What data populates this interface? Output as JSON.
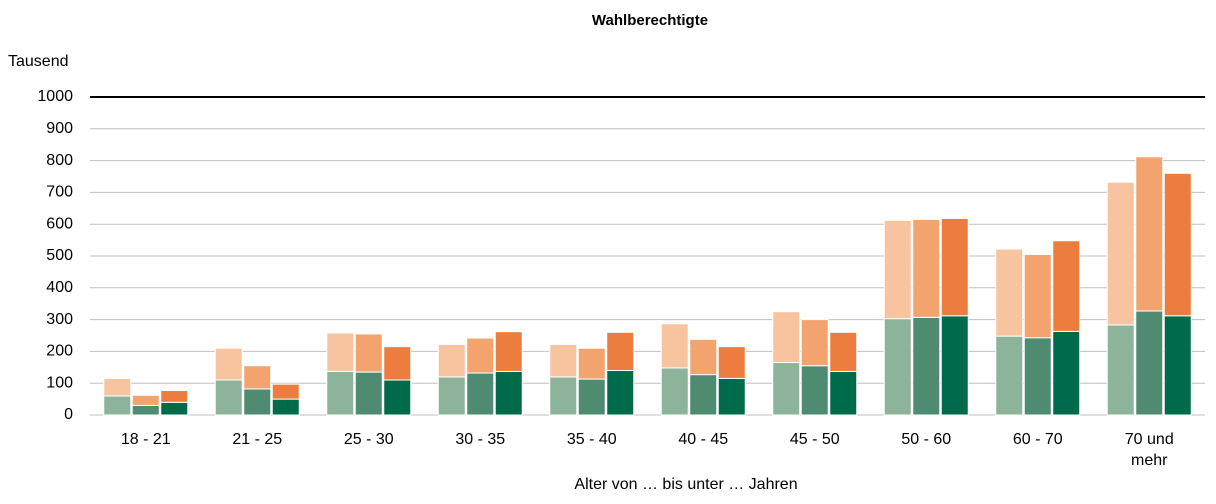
{
  "chart_data": {
    "type": "grouped_stacked_bar",
    "title": "Wahlberechtigte",
    "y_axis_label": "Tausend",
    "x_axis_label": "Alter von … bis unter … Jahren",
    "categories": [
      "18 - 21",
      "21 - 25",
      "25 - 30",
      "30 - 35",
      "35 - 40",
      "40 - 45",
      "45 - 50",
      "50 - 60",
      "60 - 70",
      "70 und\nmehr"
    ],
    "stacks": [
      {
        "series": [
          {
            "color": "#8db39b",
            "values": [
              60,
              110,
              137,
              120,
              120,
              148,
              165,
              303,
              248,
              283
            ]
          },
          {
            "color": "#f8c4a0",
            "values": [
              55,
              100,
              121,
              102,
              102,
              139,
              160,
              309,
              274,
              449
            ]
          }
        ]
      },
      {
        "series": [
          {
            "color": "#4f8b70",
            "values": [
              30,
              82,
              135,
              132,
              113,
              127,
              155,
              307,
              243,
              327
            ]
          },
          {
            "color": "#f3a46e",
            "values": [
              32,
              73,
              120,
              110,
              97,
              111,
              145,
              308,
              262,
              485
            ]
          }
        ]
      },
      {
        "series": [
          {
            "color": "#006b4a",
            "values": [
              40,
              50,
              110,
              137,
              140,
              115,
              137,
              312,
              263,
              312
            ]
          },
          {
            "color": "#ed7d3f",
            "values": [
              37,
              47,
              105,
              125,
              120,
              100,
              123,
              306,
              285,
              448
            ]
          }
        ]
      }
    ],
    "ylim": [
      0,
      1000
    ],
    "yticks": [
      0,
      100,
      200,
      300,
      400,
      500,
      600,
      700,
      800,
      900,
      1000
    ],
    "grid": true
  }
}
